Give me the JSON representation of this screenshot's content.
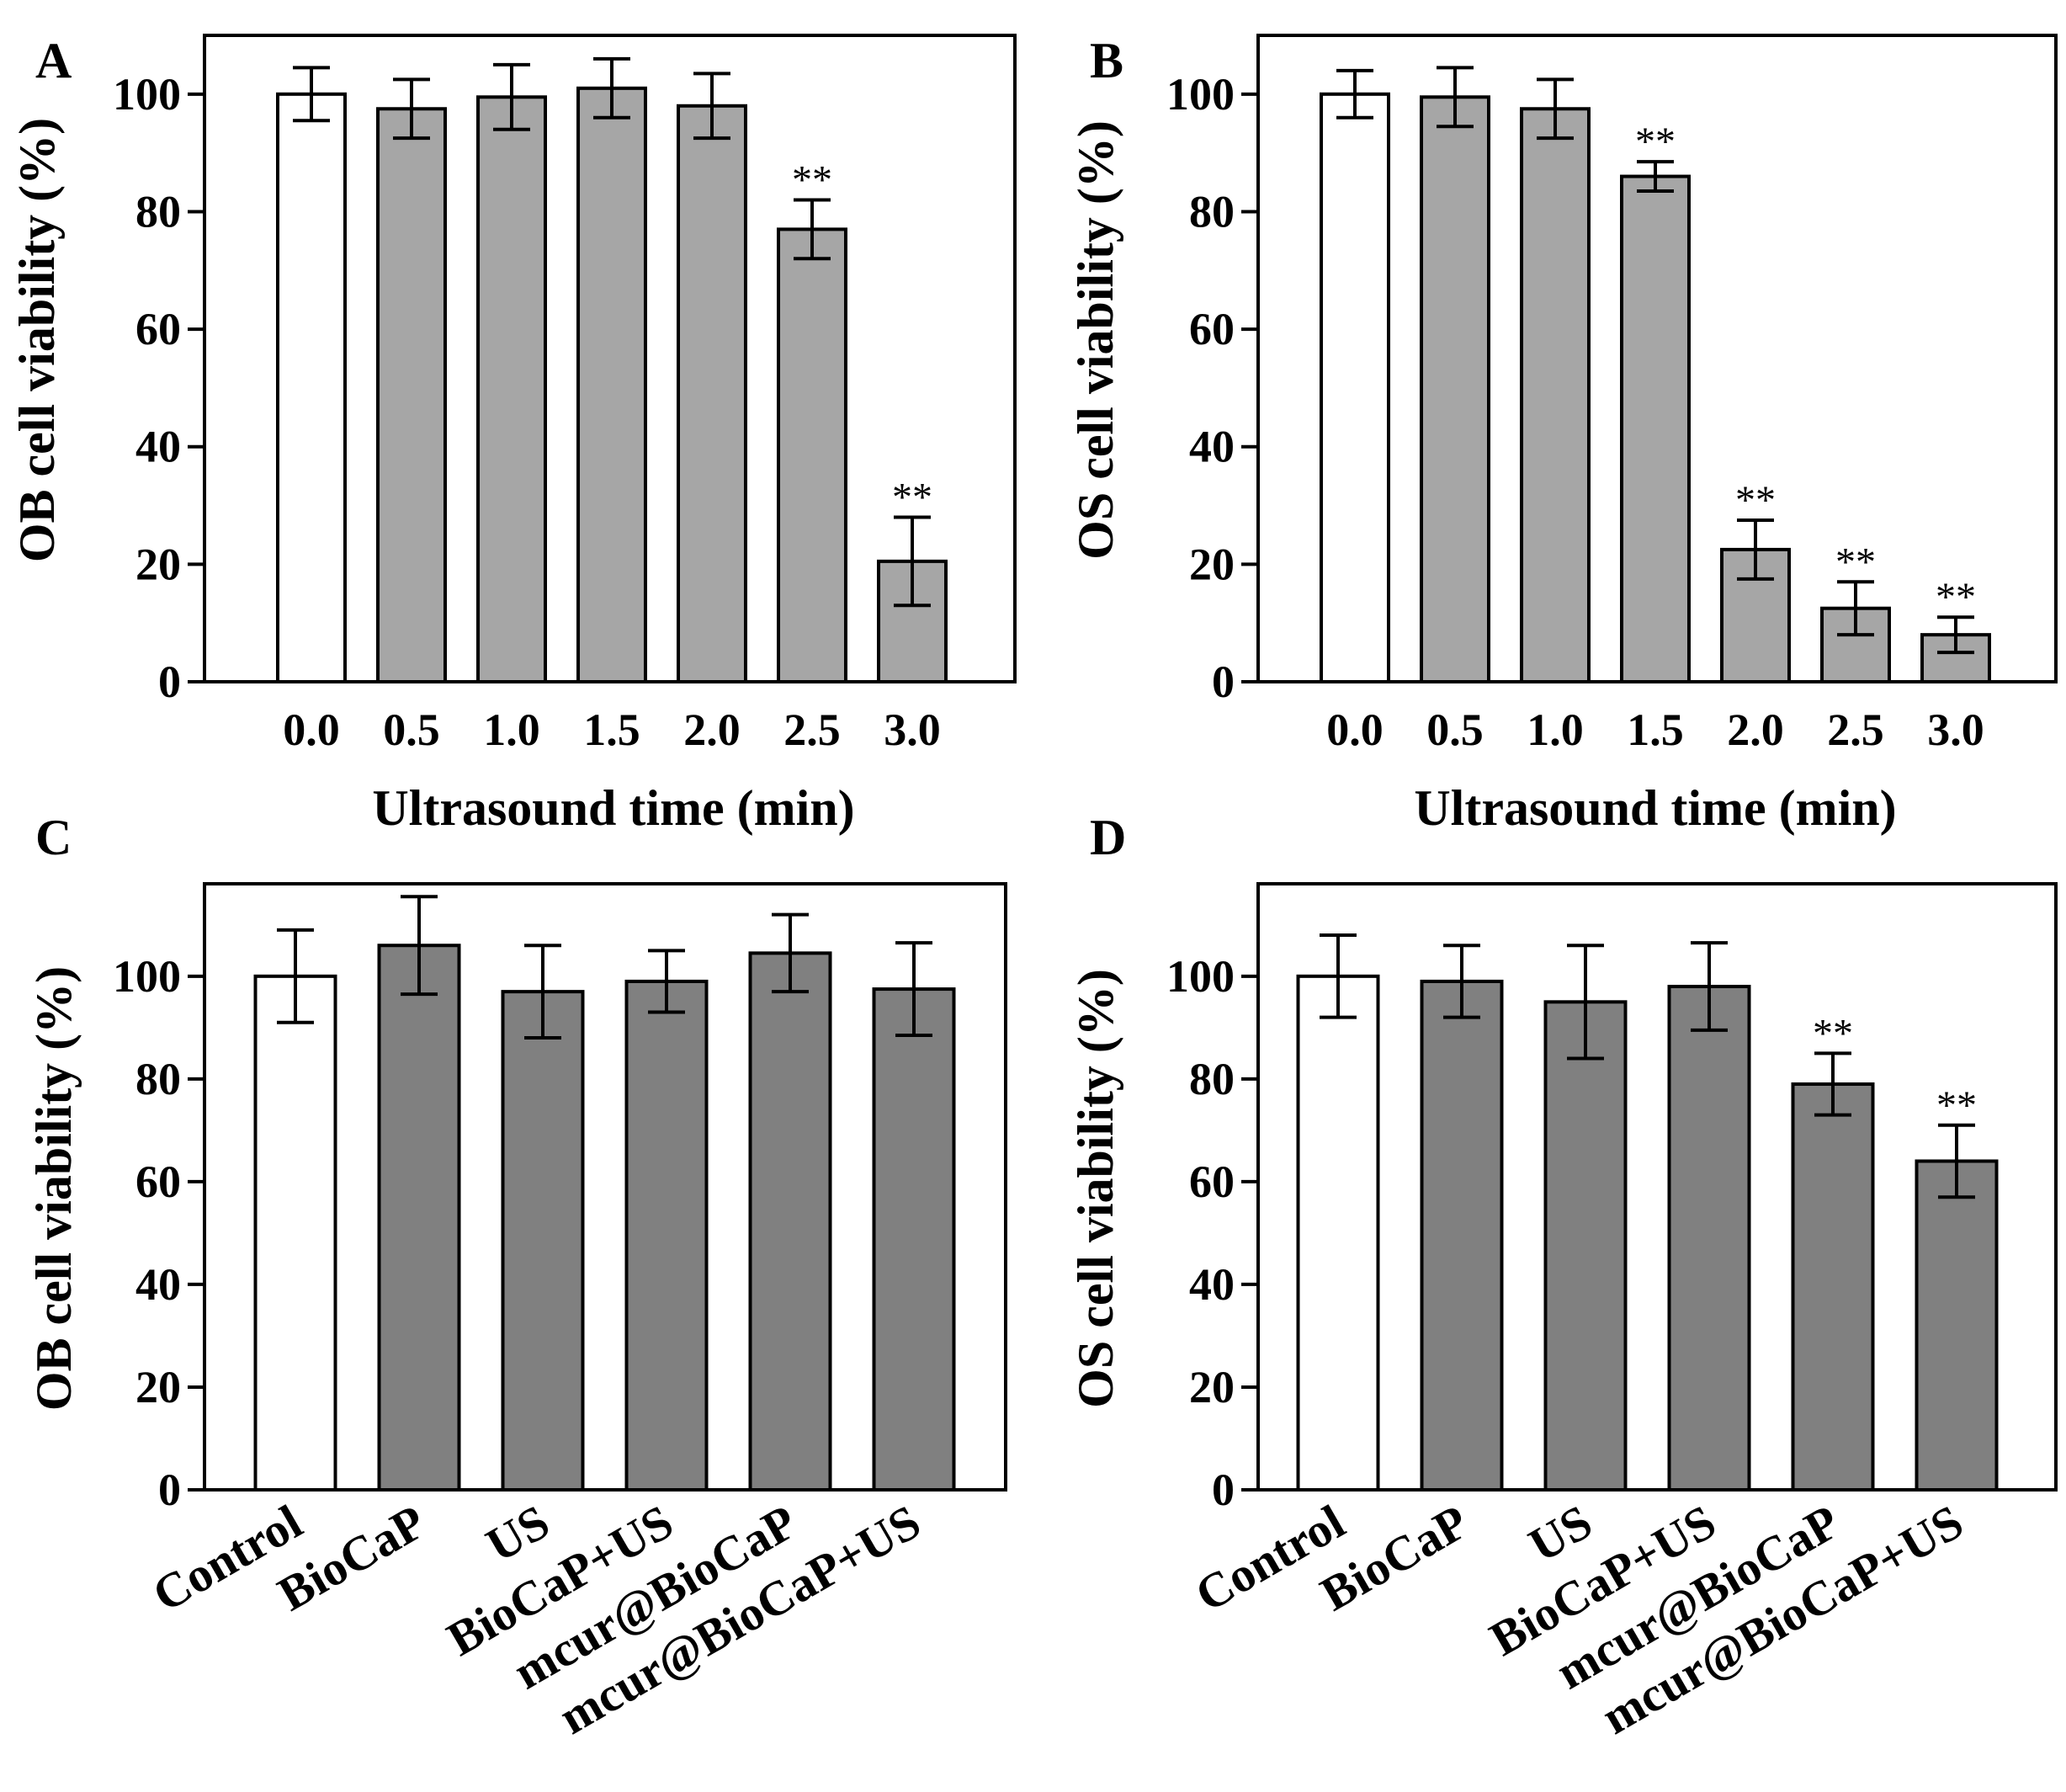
{
  "colors": {
    "control_fill": "#ffffff",
    "time_fill": "#a6a6a6",
    "treatment_fill": "#808080",
    "stroke": "#000000"
  },
  "chart_data": [
    {
      "panel": "A",
      "type": "bar",
      "xlabel": "Ultrasound time (min)",
      "ylabel": "OB cell viability (%)",
      "ylim": [
        0,
        110
      ],
      "yticks": [
        0,
        20,
        40,
        60,
        80,
        100
      ],
      "categories": [
        "0.0",
        "0.5",
        "1.0",
        "1.5",
        "2.0",
        "2.5",
        "3.0"
      ],
      "values": [
        100,
        97.5,
        99.5,
        101,
        98,
        77,
        20.5
      ],
      "errors": [
        4.5,
        5,
        5.5,
        5,
        5.5,
        5,
        7.5
      ],
      "significance": [
        "",
        "",
        "",
        "",
        "",
        "**",
        "**"
      ],
      "fills": [
        "control",
        "time",
        "time",
        "time",
        "time",
        "time",
        "time"
      ]
    },
    {
      "panel": "B",
      "type": "bar",
      "xlabel": "Ultrasound time (min)",
      "ylabel": "OS cell viability (%)",
      "ylim": [
        0,
        110
      ],
      "yticks": [
        0,
        20,
        40,
        60,
        80,
        100
      ],
      "categories": [
        "0.0",
        "0.5",
        "1.0",
        "1.5",
        "2.0",
        "2.5",
        "3.0"
      ],
      "values": [
        100,
        99.5,
        97.5,
        86,
        22.5,
        12.5,
        8
      ],
      "errors": [
        4,
        5,
        5,
        2.5,
        5,
        4.5,
        3
      ],
      "significance": [
        "",
        "",
        "",
        "**",
        "**",
        "**",
        "**"
      ],
      "fills": [
        "control",
        "time",
        "time",
        "time",
        "time",
        "time",
        "time"
      ]
    },
    {
      "panel": "C",
      "type": "bar",
      "xlabel": "",
      "ylabel": "OB cell viability (%)",
      "ylim": [
        0,
        118
      ],
      "yticks": [
        0,
        20,
        40,
        60,
        80,
        100
      ],
      "categories": [
        "Control",
        "BioCaP",
        "US",
        "BioCaP+US",
        "mcur@BioCaP",
        "mcur@BioCaP+US"
      ],
      "values": [
        100,
        106,
        97,
        99,
        104.5,
        97.5
      ],
      "errors": [
        9,
        9.5,
        9,
        6,
        7.5,
        9
      ],
      "significance": [
        "",
        "",
        "",
        "",
        "",
        ""
      ],
      "fills": [
        "control",
        "treatment",
        "treatment",
        "treatment",
        "treatment",
        "treatment"
      ]
    },
    {
      "panel": "D",
      "type": "bar",
      "xlabel": "",
      "ylabel": "OS cell viability (%)",
      "ylim": [
        0,
        118
      ],
      "yticks": [
        0,
        20,
        40,
        60,
        80,
        100
      ],
      "categories": [
        "Control",
        "BioCaP",
        "US",
        "BioCaP+US",
        "mcur@BioCaP",
        "mcur@BioCaP+US"
      ],
      "values": [
        100,
        99,
        95,
        98,
        79,
        64
      ],
      "errors": [
        8,
        7,
        11,
        8.5,
        6,
        7
      ],
      "significance": [
        "",
        "",
        "",
        "",
        "**",
        "**"
      ],
      "fills": [
        "control",
        "treatment",
        "treatment",
        "treatment",
        "treatment",
        "treatment"
      ]
    }
  ]
}
